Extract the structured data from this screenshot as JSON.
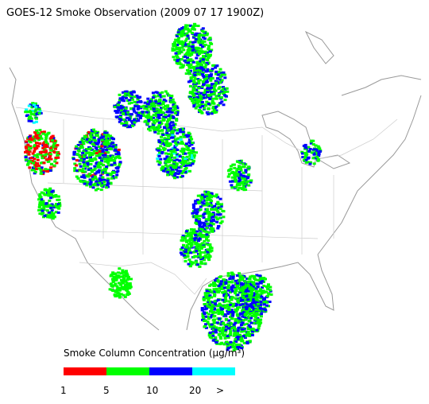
{
  "title": "GOES-12 Smoke Observation (2009 07 17  1900Z)",
  "legend": {
    "title": "Smoke Column Concentration (μg/m³)",
    "colors": [
      "#ff0000",
      "#00ff00",
      "#0000ff",
      "#00ffff"
    ],
    "labels": [
      "1",
      "5",
      "10",
      "20",
      ">"
    ]
  }
}
